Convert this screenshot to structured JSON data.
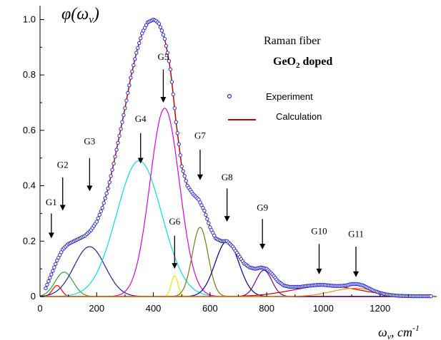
{
  "chart_data": {
    "type": "line",
    "xlabel": "ωv, cm-1",
    "ylabel": "φ(ωv)",
    "xlim": [
      0,
      1400
    ],
    "ylim": [
      0,
      1.05
    ],
    "xticks": [
      "0",
      "200",
      "400",
      "600",
      "800",
      "1000",
      "1200"
    ],
    "yticks": [
      "0",
      "0.2",
      "0.4",
      "0.6",
      "0.8",
      "1.0"
    ],
    "title_lines": [
      "Raman fiber",
      "GeO2 doped"
    ],
    "legend": {
      "placement": "upper-right",
      "entries": [
        {
          "label": "Experiment",
          "marker": "open-circle",
          "color": "#2a2ad6"
        },
        {
          "label": "Calculation",
          "marker": "line",
          "color": "#c00000"
        }
      ]
    },
    "experiment": {
      "x": [
        20,
        40,
        60,
        80,
        100,
        120,
        140,
        160,
        180,
        200,
        220,
        240,
        260,
        280,
        300,
        320,
        340,
        360,
        380,
        400,
        410,
        420,
        430,
        440,
        450,
        460,
        470,
        480,
        500,
        520,
        540,
        560,
        580,
        600,
        620,
        640,
        660,
        680,
        700,
        720,
        740,
        760,
        780,
        800,
        820,
        840,
        860,
        880,
        900,
        920,
        940,
        960,
        980,
        1000,
        1020,
        1040,
        1060,
        1080,
        1100,
        1120,
        1140,
        1160,
        1180,
        1200,
        1220,
        1240,
        1260,
        1280,
        1300,
        1320,
        1340,
        1360,
        1380
      ],
      "y": [
        0.03,
        0.08,
        0.13,
        0.17,
        0.19,
        0.2,
        0.21,
        0.22,
        0.24,
        0.27,
        0.32,
        0.39,
        0.48,
        0.58,
        0.68,
        0.79,
        0.88,
        0.95,
        0.99,
        1.0,
        0.995,
        0.985,
        0.96,
        0.93,
        0.88,
        0.82,
        0.73,
        0.63,
        0.47,
        0.4,
        0.37,
        0.35,
        0.31,
        0.25,
        0.21,
        0.2,
        0.2,
        0.18,
        0.15,
        0.12,
        0.105,
        0.1,
        0.105,
        0.1,
        0.08,
        0.055,
        0.04,
        0.035,
        0.035,
        0.035,
        0.038,
        0.04,
        0.042,
        0.042,
        0.04,
        0.038,
        0.038,
        0.04,
        0.045,
        0.045,
        0.04,
        0.03,
        0.02,
        0.013,
        0.008,
        0.005,
        0.003,
        0.002,
        0.0015,
        0.001,
        0.001,
        0.001,
        0.001
      ]
    },
    "components": [
      {
        "label": "G1",
        "center": 60,
        "amplitude": 0.04,
        "width": 16,
        "color": "#ff0000",
        "label_x": 40,
        "label_y": 0.33,
        "arrow_from": 0.3,
        "arrow_to": 0.21
      },
      {
        "label": "G2",
        "center": 85,
        "amplitude": 0.088,
        "width": 32,
        "color": "#2aa52a",
        "label_x": 80,
        "label_y": 0.465,
        "arrow_from": 0.43,
        "arrow_to": 0.31
      },
      {
        "label": "G3",
        "center": 175,
        "amplitude": 0.18,
        "width": 55,
        "color": "#1f1fa8",
        "label_x": 175,
        "label_y": 0.55,
        "arrow_from": 0.5,
        "arrow_to": 0.38
      },
      {
        "label": "G4",
        "center": 350,
        "amplitude": 0.49,
        "width": 80,
        "color": "#00e0e6",
        "label_x": 355,
        "label_y": 0.63,
        "arrow_from": 0.59,
        "arrow_to": 0.48
      },
      {
        "label": "G5",
        "center": 440,
        "amplitude": 0.68,
        "width": 52,
        "color": "#e000e0",
        "label_x": 435,
        "label_y": 0.855,
        "arrow_from": 0.82,
        "arrow_to": 0.7
      },
      {
        "label": "G6",
        "center": 475,
        "amplitude": 0.075,
        "width": 12,
        "color": "#e6e600",
        "label_x": 475,
        "label_y": 0.26,
        "arrow_from": 0.22,
        "arrow_to": 0.1
      },
      {
        "label": "G7",
        "center": 565,
        "amplitude": 0.25,
        "width": 28,
        "color": "#7a7a10",
        "label_x": 565,
        "label_y": 0.57,
        "arrow_from": 0.53,
        "arrow_to": 0.42
      },
      {
        "label": "G8",
        "center": 660,
        "amplitude": 0.2,
        "width": 42,
        "color": "#0000a0",
        "label_x": 660,
        "label_y": 0.42,
        "arrow_from": 0.39,
        "arrow_to": 0.27
      },
      {
        "label": "G9",
        "center": 790,
        "amplitude": 0.095,
        "width": 28,
        "color": "#800080",
        "label_x": 785,
        "label_y": 0.31,
        "arrow_from": 0.28,
        "arrow_to": 0.17
      },
      {
        "label": "G10",
        "center": 1010,
        "amplitude": 0.038,
        "width": 120,
        "color": "#c00000",
        "label_x": 985,
        "label_y": 0.225,
        "arrow_from": 0.19,
        "arrow_to": 0.08
      },
      {
        "label": "G11",
        "center": 1110,
        "amplitude": 0.03,
        "width": 80,
        "color": "#ff8c00",
        "label_x": 1115,
        "label_y": 0.215,
        "arrow_from": 0.18,
        "arrow_to": 0.07
      }
    ],
    "grid": false
  }
}
